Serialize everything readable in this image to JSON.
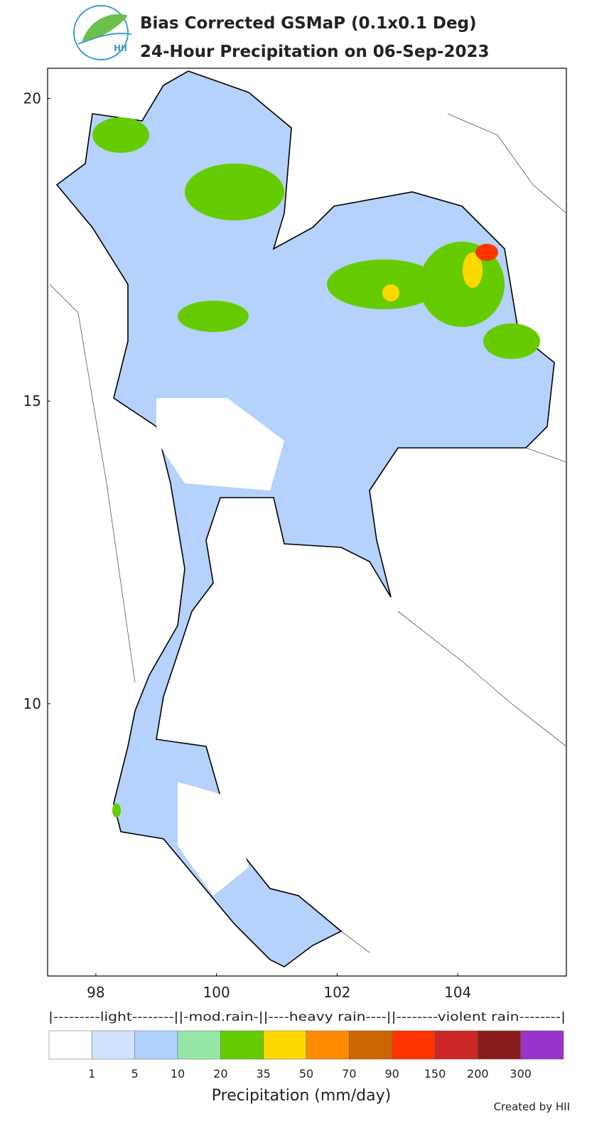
{
  "header": {
    "title_lines": [
      "Bias Corrected GSMaP (0.1x0.1 Deg)",
      "24-Hour Precipitation on 06-Sep-2023"
    ],
    "logo_text": "HII"
  },
  "map": {
    "xlim": [
      97.2,
      105.8
    ],
    "ylim": [
      5.5,
      20.5
    ],
    "xticks": [
      98,
      100,
      102,
      104
    ],
    "yticks": [
      10,
      15,
      20
    ]
  },
  "legend": {
    "classes_text": "|---------light--------||-mod.rain-||----heavy rain----||--------violent rain--------|",
    "colors": [
      "#ffffff",
      "#cfe2ff",
      "#b0d0fe",
      "#96e6a8",
      "#66cc00",
      "#fdd900",
      "#ff8a00",
      "#cc6600",
      "#ff3300",
      "#cc2626",
      "#881c1c",
      "#9933cc"
    ],
    "ticks": [
      1,
      5,
      10,
      20,
      35,
      50,
      70,
      90,
      150,
      200,
      300
    ],
    "label": "Precipitation (mm/day)"
  },
  "footer": {
    "credit": "Created by HII"
  }
}
